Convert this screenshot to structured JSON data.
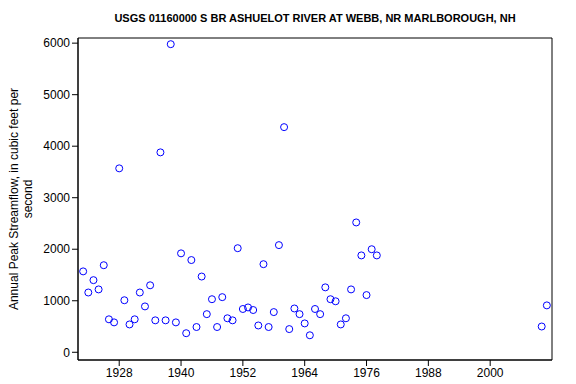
{
  "chart_data": {
    "type": "scatter",
    "title": "USGS 01160000 S BR ASHUELOT RIVER AT WEBB, NR MARLBOROUGH, NH",
    "y_label": "Annual Peak Streamflow, in cubic feet per second",
    "x": [
      1921,
      1922,
      1923,
      1924,
      1925,
      1926,
      1927,
      1928,
      1929,
      1930,
      1931,
      1932,
      1933,
      1934,
      1935,
      1936,
      1937,
      1938,
      1939,
      1940,
      1941,
      1942,
      1943,
      1944,
      1945,
      1946,
      1947,
      1948,
      1949,
      1950,
      1951,
      1952,
      1953,
      1954,
      1955,
      1956,
      1957,
      1958,
      1959,
      1960,
      1961,
      1962,
      1963,
      1964,
      1965,
      1966,
      1967,
      1968,
      1969,
      1970,
      1971,
      1972,
      1973,
      1974,
      1975,
      1976,
      1977,
      1978,
      2010,
      2011
    ],
    "values": [
      1570,
      1160,
      1400,
      1220,
      1690,
      640,
      580,
      3570,
      1010,
      540,
      640,
      1160,
      890,
      1300,
      620,
      3880,
      620,
      5980,
      580,
      1920,
      370,
      1790,
      490,
      1470,
      740,
      1030,
      490,
      1070,
      660,
      620,
      2020,
      840,
      870,
      820,
      520,
      1710,
      490,
      780,
      2080,
      4370,
      450,
      850,
      740,
      560,
      330,
      840,
      740,
      1260,
      1030,
      990,
      540,
      660,
      1220,
      2520,
      1880,
      1110,
      2000,
      1880,
      500,
      910
    ],
    "color": "#0000ff",
    "marker": "open_circle",
    "xlim": [
      1920,
      2012
    ],
    "xticks": [
      1928,
      1940,
      1952,
      1964,
      1976,
      1988,
      2000
    ],
    "ylim": [
      -150,
      6100
    ],
    "yticks": [
      0,
      1000,
      2000,
      3000,
      4000,
      5000,
      6000
    ],
    "grid": false
  }
}
